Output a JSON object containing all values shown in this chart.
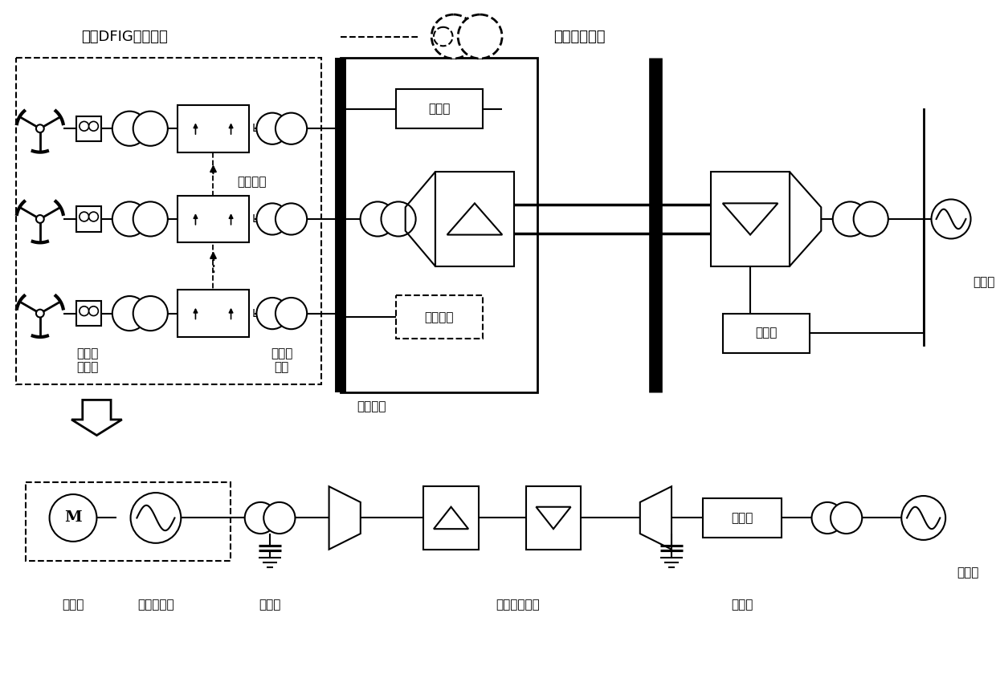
{
  "bg_color": "#ffffff",
  "labels": {
    "island_farm": "孤岛DFIG型风电场",
    "rotor_converter": "转子侧\n变流器",
    "dc_source": "直流电源",
    "grid_converter": "网侧变\n流器",
    "filter1": "滤波器",
    "local_load": "本地负载",
    "sending_bus": "送端母线",
    "filter2": "滤波器",
    "main_grid_top": "主电网",
    "no_ext_voltage": "无外部电压源",
    "prime_mover": "原动机",
    "virtual_sync": "虚拟同步机",
    "filter3": "滤波器",
    "hvdc": "高压直流系统",
    "filter4": "滤波器",
    "main_grid_bottom": "主电网"
  },
  "font_size": 11,
  "font_size_large": 13
}
